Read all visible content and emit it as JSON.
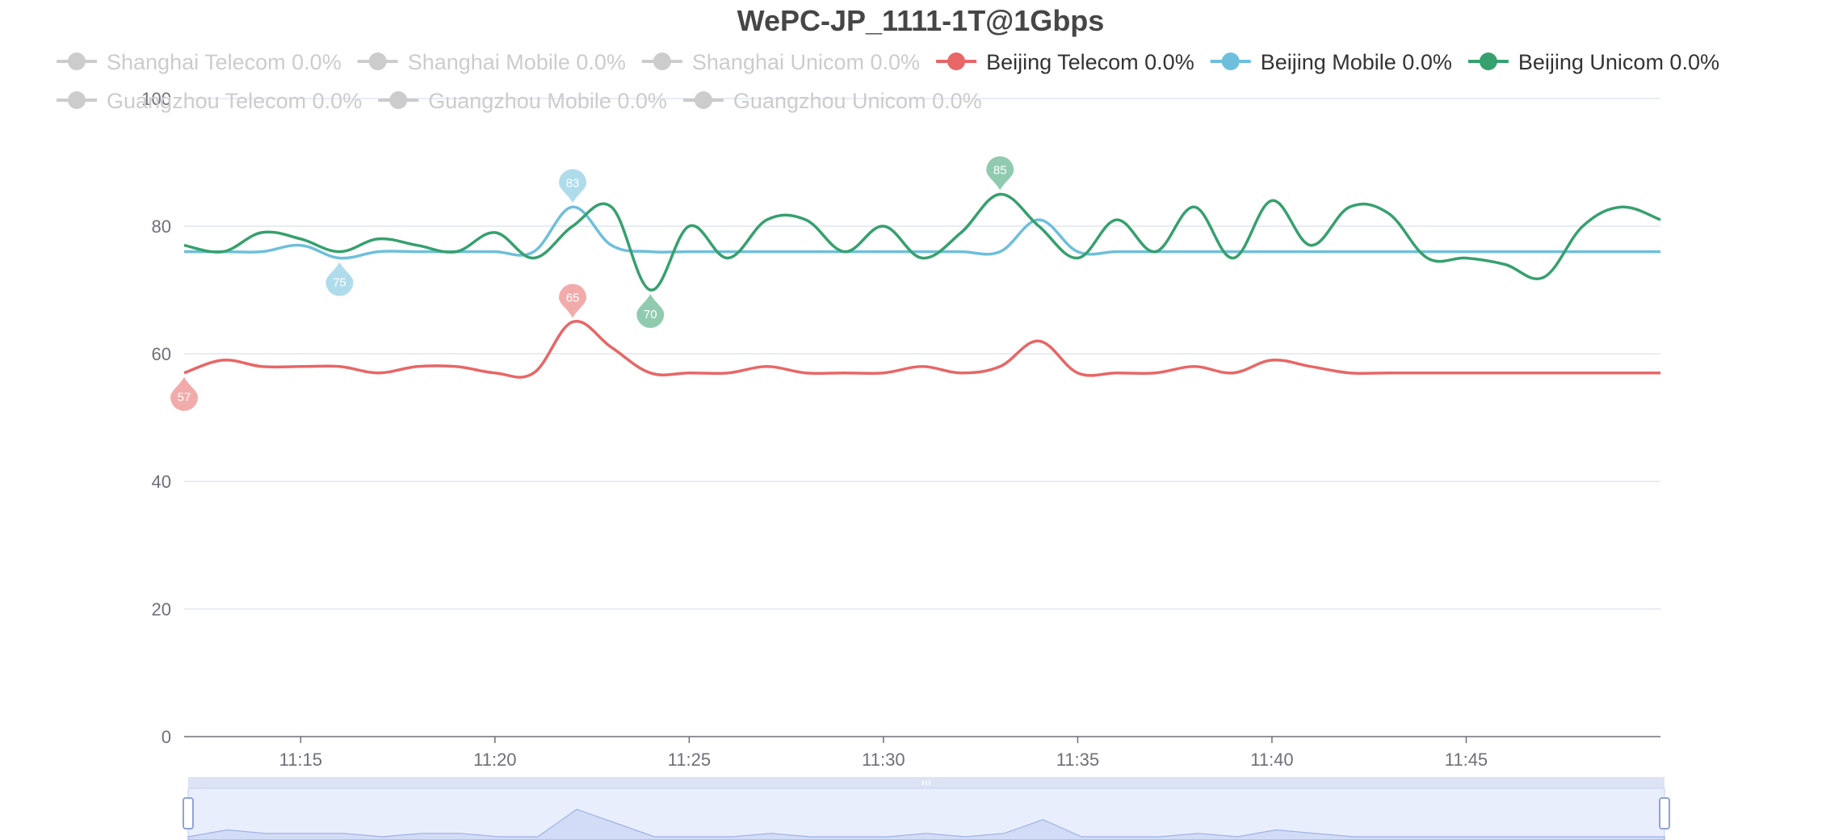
{
  "chart_data": {
    "type": "line",
    "title": "WePC-JP_1111-1T@1Gbps",
    "xlabel": "",
    "ylabel": "",
    "ylim": [
      0,
      100
    ],
    "y_ticks": [
      "0",
      "20",
      "40",
      "60",
      "80",
      "100"
    ],
    "x_ticks": [
      "11:15",
      "11:20",
      "11:25",
      "11:30",
      "11:35",
      "11:40",
      "11:45"
    ],
    "x_range": [
      "11:12",
      "11:50"
    ],
    "grid": true,
    "smooth": true,
    "legend_position": "top",
    "legend": [
      {
        "name": "Shanghai Telecom 0.0%",
        "active": false,
        "color": "#cccccc"
      },
      {
        "name": "Shanghai Mobile 0.0%",
        "active": false,
        "color": "#cccccc"
      },
      {
        "name": "Shanghai Unicom 0.0%",
        "active": false,
        "color": "#cccccc"
      },
      {
        "name": "Beijing Telecom 0.0%",
        "active": true,
        "color": "#e86666"
      },
      {
        "name": "Beijing Mobile 0.0%",
        "active": true,
        "color": "#6ebfdb"
      },
      {
        "name": "Beijing Unicom 0.0%",
        "active": true,
        "color": "#36a06e"
      },
      {
        "name": "Guangzhou Telecom 0.0%",
        "active": false,
        "color": "#cccccc"
      },
      {
        "name": "Guangzhou Mobile 0.0%",
        "active": false,
        "color": "#cccccc"
      },
      {
        "name": "Guangzhou Unicom 0.0%",
        "active": false,
        "color": "#cccccc"
      }
    ],
    "x": [
      "11:12",
      "11:13",
      "11:14",
      "11:15",
      "11:16",
      "11:17",
      "11:18",
      "11:19",
      "11:20",
      "11:21",
      "11:22",
      "11:23",
      "11:24",
      "11:25",
      "11:26",
      "11:27",
      "11:28",
      "11:29",
      "11:30",
      "11:31",
      "11:32",
      "11:33",
      "11:34",
      "11:35",
      "11:36",
      "11:37",
      "11:38",
      "11:39",
      "11:40",
      "11:41",
      "11:42",
      "11:43",
      "11:44",
      "11:45",
      "11:46",
      "11:47",
      "11:48",
      "11:49",
      "11:50"
    ],
    "series": [
      {
        "name": "Beijing Telecom",
        "color": "#e86666",
        "values": [
          57,
          59,
          58,
          58,
          58,
          57,
          58,
          58,
          57,
          57,
          65,
          61,
          57,
          57,
          57,
          58,
          57,
          57,
          57,
          58,
          57,
          58,
          62,
          57,
          57,
          57,
          58,
          57,
          59,
          58,
          57,
          57,
          57,
          57,
          57,
          57,
          57,
          57,
          57
        ],
        "markers": [
          {
            "label": "57",
            "kind": "min",
            "x": "11:12",
            "y": 57
          },
          {
            "label": "65",
            "kind": "max",
            "x": "11:22",
            "y": 65
          }
        ]
      },
      {
        "name": "Beijing Mobile",
        "color": "#6ebfdb",
        "values": [
          76,
          76,
          76,
          77,
          75,
          76,
          76,
          76,
          76,
          76,
          83,
          77,
          76,
          76,
          76,
          76,
          76,
          76,
          76,
          76,
          76,
          76,
          81,
          76,
          76,
          76,
          76,
          76,
          76,
          76,
          76,
          76,
          76,
          76,
          76,
          76,
          76,
          76,
          76
        ],
        "markers": [
          {
            "label": "83",
            "kind": "max",
            "x": "11:22",
            "y": 83
          },
          {
            "label": "75",
            "kind": "min",
            "x": "11:16",
            "y": 75
          }
        ]
      },
      {
        "name": "Beijing Unicom",
        "color": "#36a06e",
        "values": [
          77,
          76,
          79,
          78,
          76,
          78,
          77,
          76,
          79,
          75,
          80,
          83,
          70,
          80,
          75,
          81,
          81,
          76,
          80,
          75,
          79,
          85,
          80,
          75,
          81,
          76,
          83,
          75,
          84,
          77,
          83,
          82,
          75,
          75,
          74,
          72,
          80,
          83,
          81
        ],
        "markers": [
          {
            "label": "85",
            "kind": "max",
            "x": "11:33",
            "y": 85
          },
          {
            "label": "70",
            "kind": "min",
            "x": "11:24",
            "y": 70
          }
        ]
      }
    ],
    "data_zoom": {
      "start": 0,
      "end": 100
    }
  }
}
